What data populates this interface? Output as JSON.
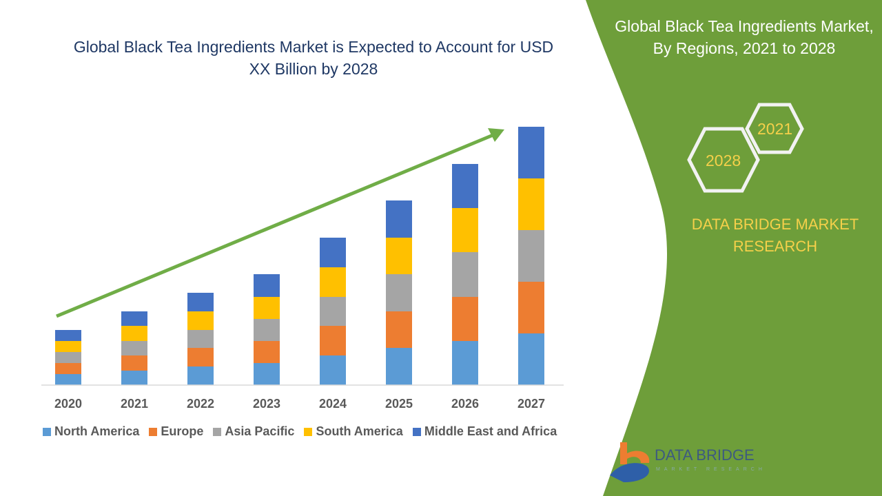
{
  "title": "Global Black Tea Ingredients Market is Expected to Account for USD XX Billion by 2028",
  "side_panel": {
    "title": "Global Black Tea Ingredients Market, By Regions, 2021 to 2028",
    "hex_years": [
      "2028",
      "2021"
    ],
    "brand": "DATA BRIDGE MARKET RESEARCH",
    "logo_text": "DATA BRIDGE",
    "logo_sub": "MARKET RESEARCH",
    "color": "#6e9e3a"
  },
  "chart_data": {
    "type": "bar",
    "stacked": true,
    "categories": [
      "2020",
      "2021",
      "2022",
      "2023",
      "2024",
      "2025",
      "2026",
      "2027"
    ],
    "series": [
      {
        "name": "North America",
        "color": "#5b9bd5",
        "values": [
          1.6,
          2.1,
          2.7,
          3.2,
          4.3,
          5.4,
          6.4,
          7.5
        ]
      },
      {
        "name": "Europe",
        "color": "#ed7d31",
        "values": [
          1.6,
          2.2,
          2.7,
          3.2,
          4.3,
          5.3,
          6.4,
          7.5
        ]
      },
      {
        "name": "Asia Pacific",
        "color": "#a5a5a5",
        "values": [
          1.6,
          2.1,
          2.6,
          3.2,
          4.2,
          5.4,
          6.5,
          7.5
        ]
      },
      {
        "name": "South America",
        "color": "#ffc000",
        "values": [
          1.6,
          2.2,
          2.7,
          3.2,
          4.3,
          5.3,
          6.4,
          7.5
        ]
      },
      {
        "name": "Middle East and Africa",
        "color": "#4472c4",
        "values": [
          1.6,
          2.1,
          2.7,
          3.3,
          4.3,
          5.4,
          6.4,
          7.5
        ]
      }
    ],
    "trend_arrow_color": "#70ad47",
    "grid": false,
    "legend": "bottom"
  }
}
